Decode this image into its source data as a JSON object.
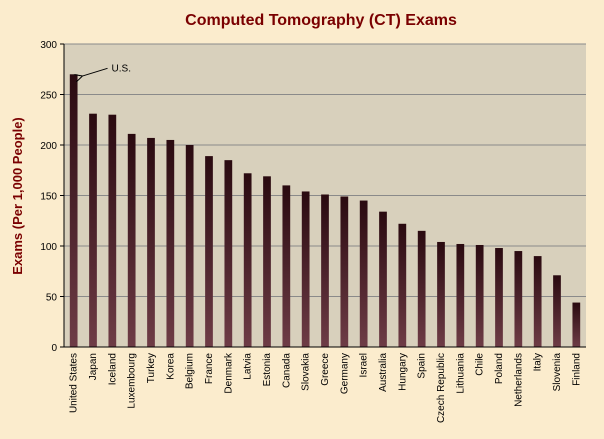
{
  "colors": {
    "page_background": "#fbeccd",
    "plot_background": "#d8d0bc",
    "title": "#7a0000",
    "axis_label": "#7a0000",
    "gridline": "#8a8a8a",
    "bar_top": "#2a0a10",
    "bar_bottom": "#6e3c46"
  },
  "chart_data": {
    "type": "bar",
    "title": "Computed Tomography (CT) Exams",
    "xlabel": "",
    "ylabel": "Exams (Per 1,000 People)",
    "ylim": [
      0,
      300
    ],
    "yticks": [
      0,
      50,
      100,
      150,
      200,
      250,
      300
    ],
    "grid": true,
    "legend": "none",
    "categories": [
      "United States",
      "Japan",
      "Iceland",
      "Luxembourg",
      "Turkey",
      "Korea",
      "Belgium",
      "France",
      "Denmark",
      "Latvia",
      "Estonia",
      "Canada",
      "Slovakia",
      "Greece",
      "Germany",
      "Israel",
      "Australia",
      "Hungary",
      "Spain",
      "Czech Republic",
      "Lithuania",
      "Chile",
      "Poland",
      "Netherlands",
      "Italy",
      "Slovenia",
      "Finland"
    ],
    "values": [
      270,
      231,
      230,
      211,
      207,
      205,
      200,
      189,
      185,
      172,
      169,
      160,
      154,
      151,
      149,
      145,
      134,
      122,
      115,
      104,
      102,
      101,
      98,
      95,
      90,
      71,
      44
    ],
    "annotations": [
      {
        "text": "U.S.",
        "category": "United States",
        "value": 270
      }
    ]
  }
}
